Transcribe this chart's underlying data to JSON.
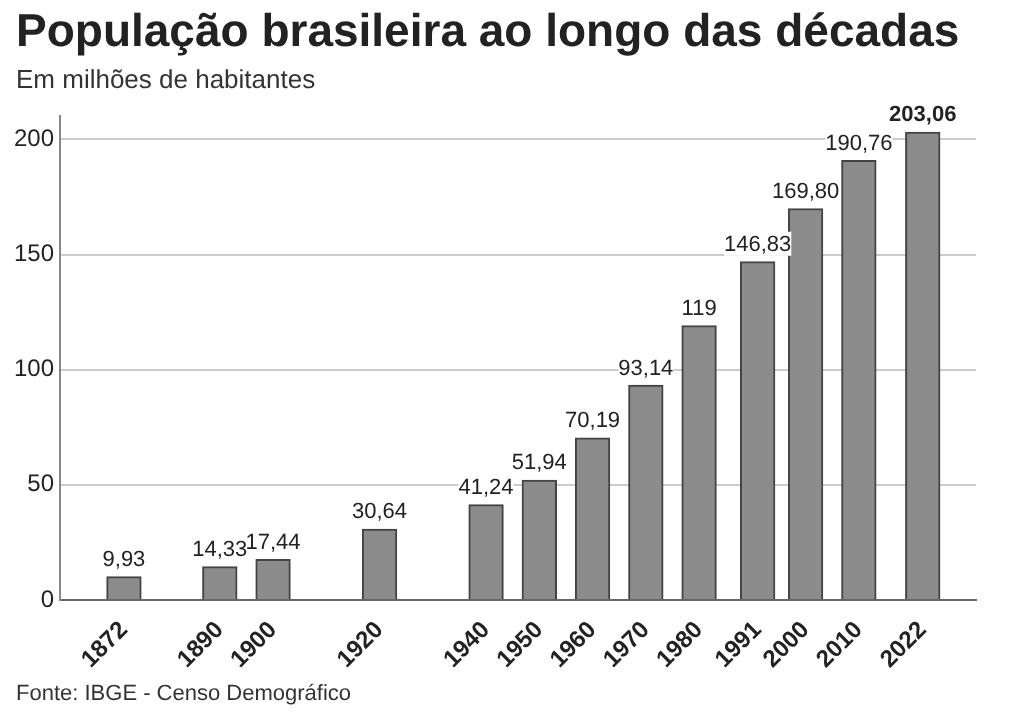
{
  "chart_data": {
    "type": "bar",
    "title": "População brasileira ao longo das décadas",
    "subtitle": "Em milhões de habitantes",
    "annotations": [
      "Fonte: IBGE - Censo Demográfico"
    ],
    "x": [
      1872,
      1890,
      1900,
      1920,
      1940,
      1950,
      1960,
      1970,
      1980,
      1991,
      2000,
      2010,
      2022
    ],
    "values": [
      9.93,
      14.33,
      17.44,
      30.64,
      41.24,
      51.94,
      70.19,
      93.14,
      119,
      146.83,
      169.8,
      190.76,
      203.06
    ],
    "value_labels": [
      "9,93",
      "14,33",
      "17,44",
      "30,64",
      "41,24",
      "51,94",
      "70,19",
      "93,14",
      "119",
      "146,83",
      "169,80",
      "190,76",
      "203,06"
    ],
    "color": "#8c8c8c",
    "xlim": [
      1860,
      2032
    ],
    "xticks": [
      1872,
      1890,
      1900,
      1920,
      1940,
      1950,
      1960,
      1970,
      1980,
      1991,
      2000,
      2010,
      2022
    ],
    "ylim": [
      0,
      210
    ],
    "yticks": [
      0,
      50,
      100,
      150,
      200
    ],
    "grid": "y",
    "legend": false
  }
}
